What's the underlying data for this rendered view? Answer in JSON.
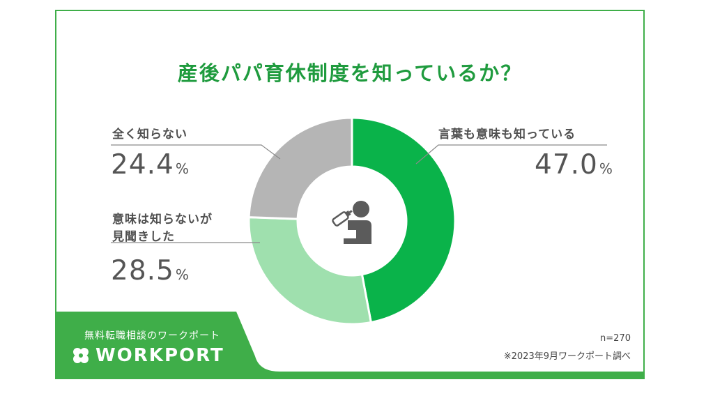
{
  "title": "産後パパ育休制度を知っているか？",
  "chart_data": {
    "type": "pie",
    "donut": true,
    "title": "産後パパ育休制度を知っているか？",
    "slices": [
      {
        "label": "言葉も意味も知っている",
        "value": 47.0,
        "display": "47.0",
        "color": "#0ab34a"
      },
      {
        "label": "意味は知らないが見聞きした",
        "label_lines": [
          "意味は知らないが",
          "見聞きした"
        ],
        "value": 28.5,
        "display": "28.5",
        "color": "#9fe0ae"
      },
      {
        "label": "全く知らない",
        "value": 24.4,
        "display": "24.4",
        "color": "#b5b5b5"
      }
    ],
    "unit": "%"
  },
  "brand": {
    "subtitle": "無料転職相談のワークポート",
    "name": "WORKPORT",
    "color": "#3fae49"
  },
  "notes": {
    "sample": "n=270",
    "source": "※2023年9月ワークポート調べ"
  },
  "icons": {
    "center": "baby-with-bottle-icon",
    "logo": "clover-icon"
  }
}
